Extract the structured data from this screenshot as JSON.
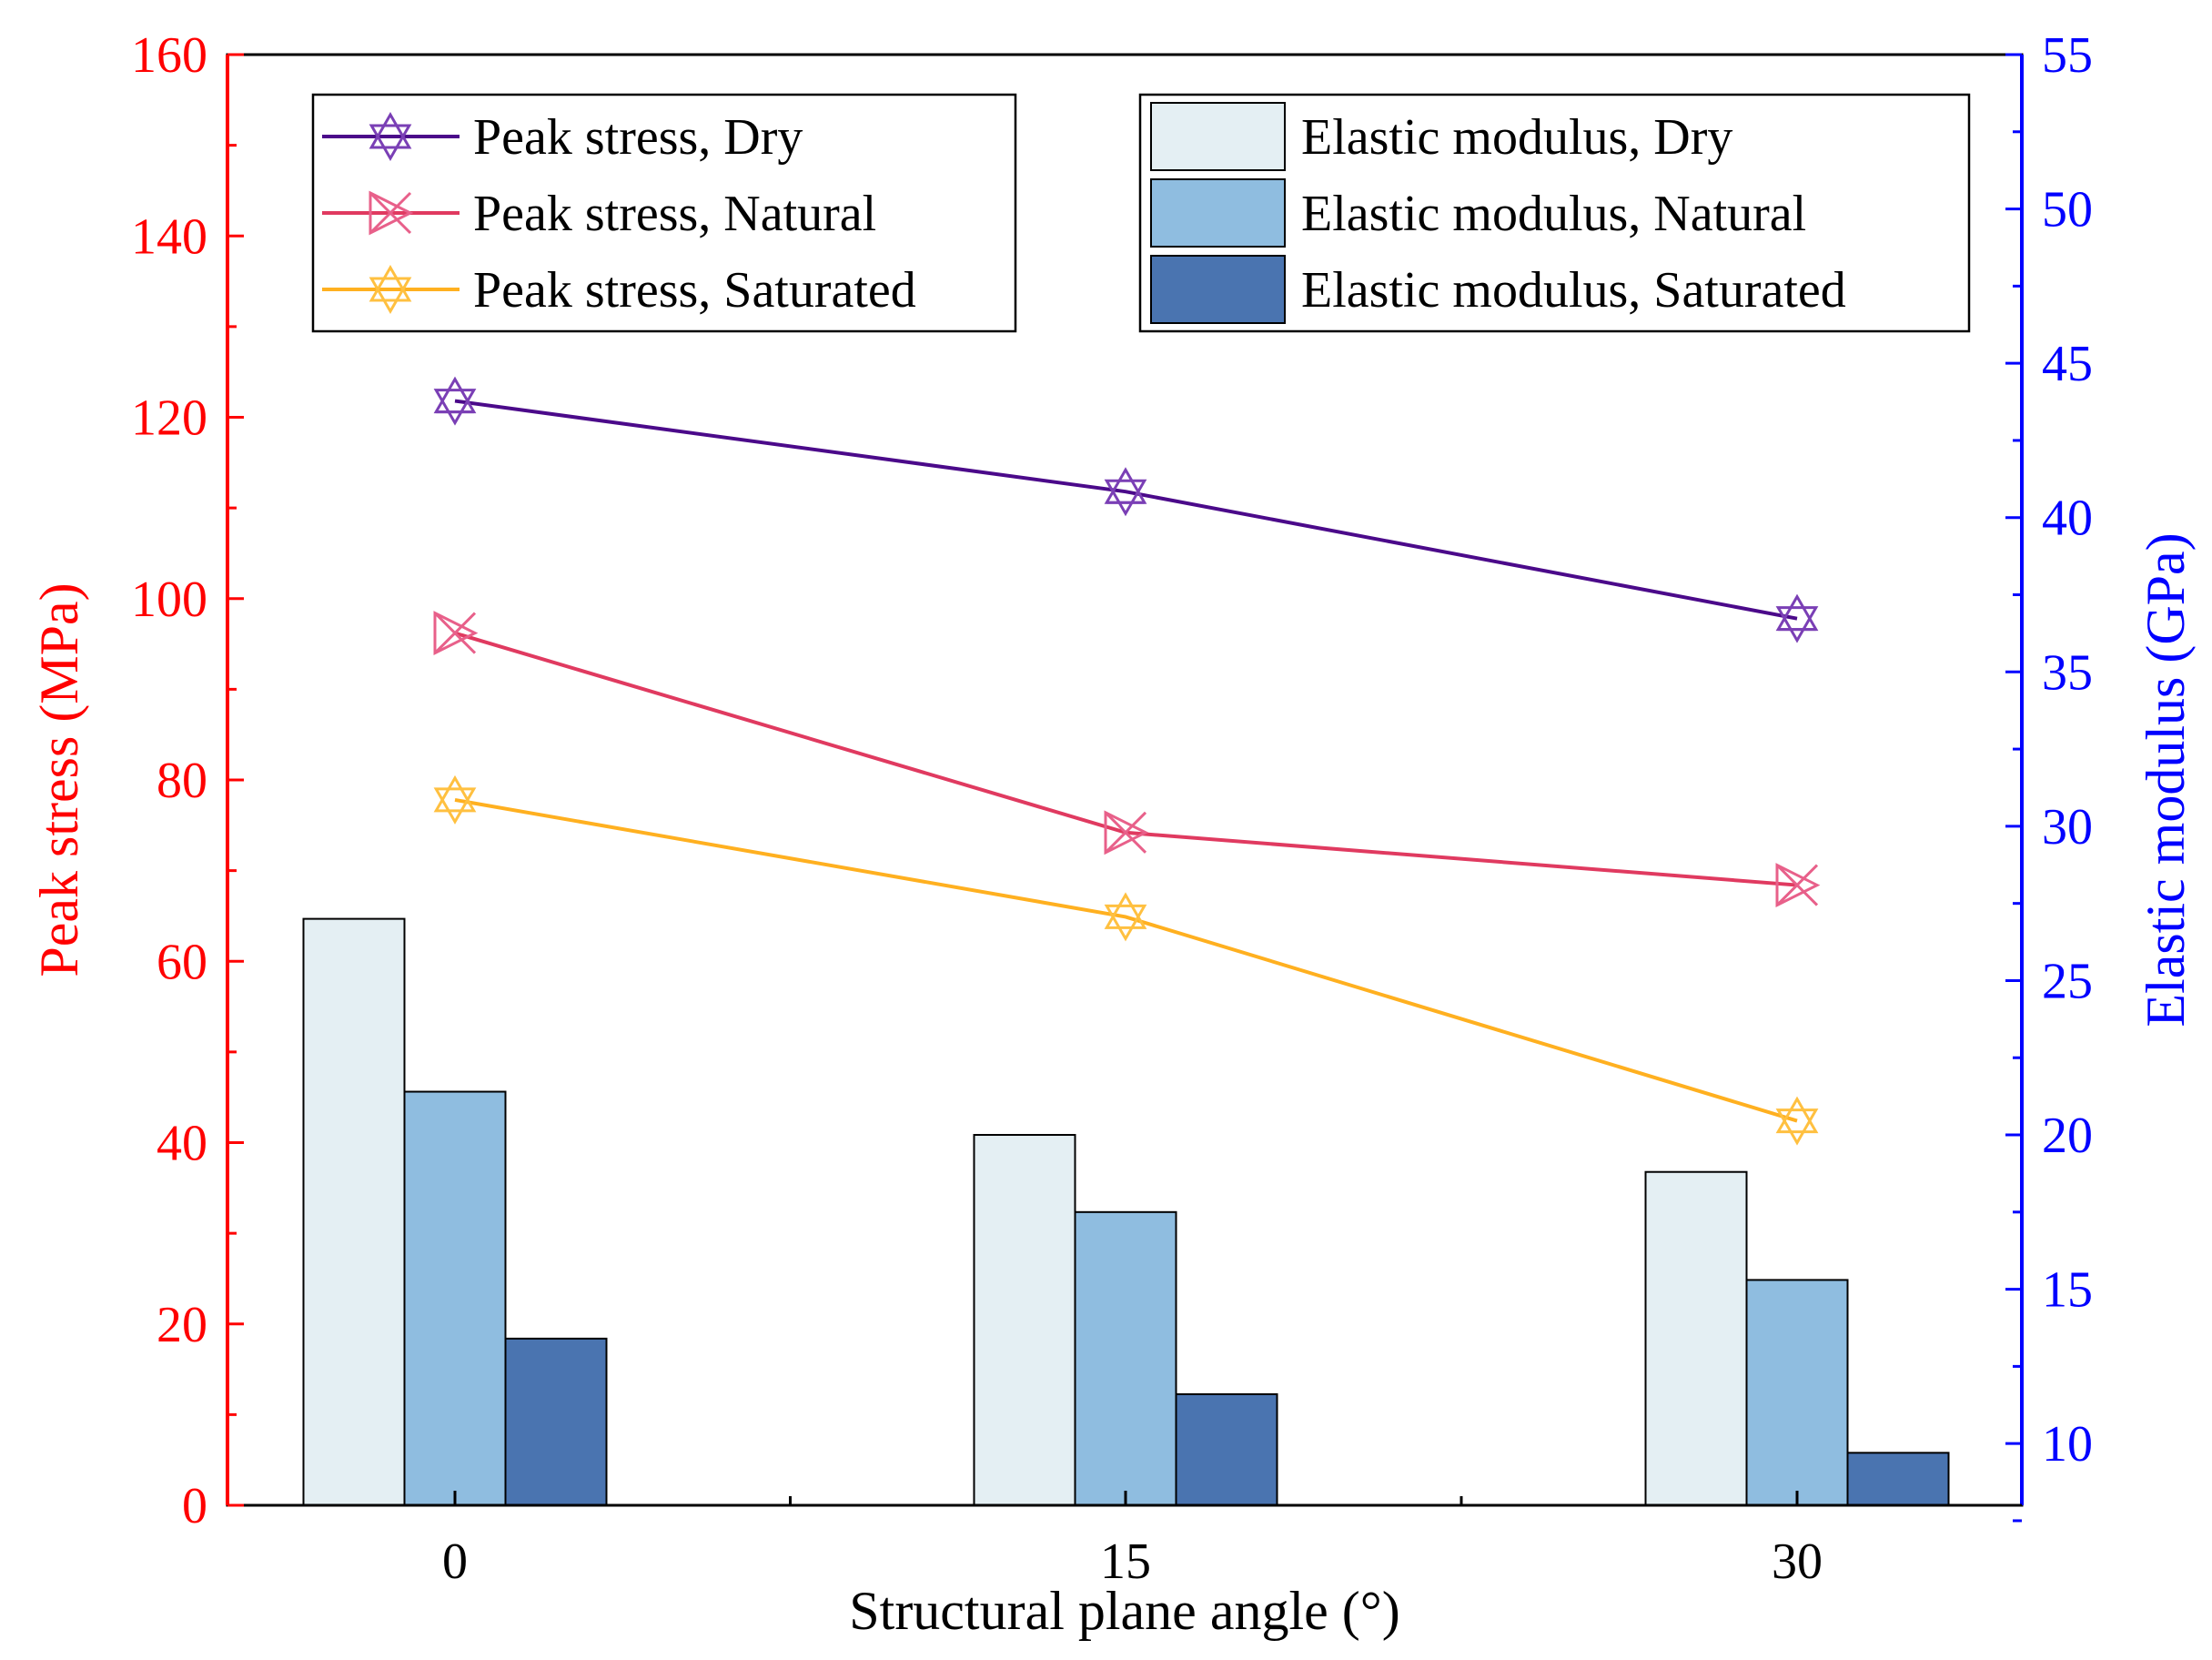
{
  "chart_data": {
    "type": "bar",
    "xlabel": "Structural plane angle (°)",
    "categories": [
      "0",
      "15",
      "30"
    ],
    "y_left": {
      "label": "Peak stress (MPa)",
      "range": [
        0,
        160
      ],
      "ticks": [
        "0",
        "20",
        "40",
        "60",
        "80",
        "100",
        "120",
        "140",
        "160"
      ],
      "color": "#ff0000"
    },
    "y_right": {
      "label": "Elastic modulus (GPa)",
      "range": [
        8,
        55
      ],
      "ticks": [
        "10",
        "15",
        "20",
        "25",
        "30",
        "35",
        "40",
        "45",
        "50",
        "55"
      ],
      "color": "#0000ff"
    },
    "bar_series": [
      {
        "name": "Elastic modulus, Dry",
        "axis": "right",
        "color": "#e4eff3",
        "values": [
          27.0,
          20.0,
          18.8
        ]
      },
      {
        "name": "Elastic modulus, Natural",
        "axis": "right",
        "color": "#8fbde0",
        "values": [
          21.4,
          17.5,
          15.3
        ]
      },
      {
        "name": "Elastic modulus, Saturated",
        "axis": "right",
        "color": "#4a74b0",
        "values": [
          13.4,
          11.6,
          9.7
        ]
      }
    ],
    "line_series": [
      {
        "name": "Peak stress, Dry",
        "axis": "left",
        "color": "#4b0a8a",
        "marker_color": "#7a3fb5",
        "marker": "star-up",
        "values": [
          121.8,
          111.8,
          97.8
        ]
      },
      {
        "name": "Peak stress, Natural",
        "axis": "left",
        "color": "#e03a60",
        "marker_color": "#e8608a",
        "marker": "bowtie",
        "values": [
          96.2,
          74.2,
          68.4
        ]
      },
      {
        "name": "Peak stress, Saturated",
        "axis": "left",
        "color": "#ffb020",
        "marker_color": "#ffc040",
        "marker": "star-down",
        "values": [
          77.8,
          64.9,
          42.4
        ]
      }
    ],
    "legend": {
      "lines_position": "top-left",
      "bars_position": "top-right"
    }
  }
}
